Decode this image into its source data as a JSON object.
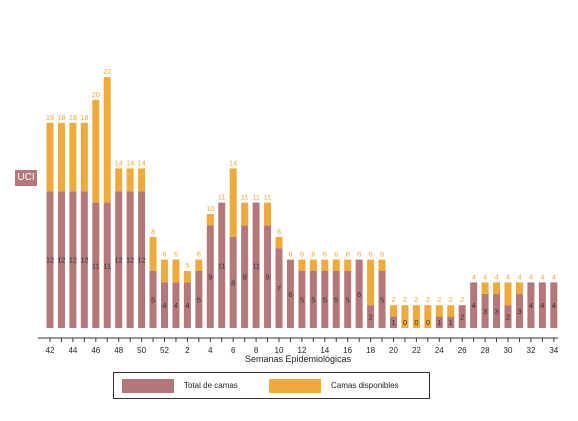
{
  "tag_label": "UCI",
  "colors": {
    "total": "#b5787a",
    "disponibles": "#f0a93b",
    "total_text": "#333333",
    "disponibles_text": "#f0a93b"
  },
  "legend": {
    "total_label": "Total de camas",
    "disponibles_label": "Camas disponibles"
  },
  "chart_data": {
    "type": "bar",
    "stacked": true,
    "xlabel": "Semanas Epidemiológicas",
    "ylabel": "",
    "ylim": [
      0,
      22
    ],
    "categories": [
      "42",
      "43",
      "44",
      "45",
      "46",
      "47",
      "48",
      "49",
      "50",
      "51",
      "52",
      "1",
      "2",
      "3",
      "4",
      "5",
      "6",
      "7",
      "8",
      "9",
      "10",
      "11",
      "12",
      "13",
      "14",
      "15",
      "16",
      "17",
      "18",
      "19",
      "20",
      "21",
      "22",
      "23",
      "24",
      "25",
      "26",
      "27",
      "28",
      "29",
      "30",
      "31",
      "32",
      "33",
      "34"
    ],
    "tick_labels": [
      "42",
      "44",
      "46",
      "48",
      "50",
      "52",
      "2",
      "4",
      "6",
      "8",
      "10",
      "12",
      "14",
      "16",
      "18",
      "20",
      "22",
      "24",
      "26",
      "28",
      "30",
      "32",
      "34"
    ],
    "series": [
      {
        "name": "Total de camas",
        "values": [
          12,
          12,
          12,
          12,
          11,
          11,
          12,
          12,
          12,
          5,
          4,
          4,
          4,
          5,
          9,
          11,
          8,
          9,
          11,
          9,
          7,
          6,
          5,
          5,
          5,
          5,
          5,
          6,
          2,
          5,
          1,
          0,
          0,
          0,
          1,
          1,
          2,
          4,
          3,
          3,
          2,
          3,
          4,
          4,
          4
        ]
      },
      {
        "name": "Camas disponibles",
        "values": [
          6,
          6,
          6,
          6,
          9,
          11,
          2,
          2,
          2,
          3,
          2,
          2,
          1,
          1,
          1,
          0,
          6,
          2,
          0,
          2,
          1,
          0,
          1,
          1,
          1,
          1,
          1,
          0,
          4,
          1,
          1,
          2,
          2,
          2,
          1,
          1,
          0,
          0,
          1,
          1,
          2,
          1,
          0,
          0,
          0
        ]
      }
    ],
    "total_labels": [
      "18",
      "18",
      "18",
      "18",
      "20",
      "22",
      "14",
      "14",
      "14",
      "8",
      "6",
      "6",
      "5",
      "6",
      "10",
      "11",
      "14",
      "11",
      "11",
      "11",
      "8",
      "6",
      "6",
      "6",
      "6",
      "6",
      "6",
      "6",
      "6",
      "6",
      "2",
      "2",
      "2",
      "2",
      "2",
      "2",
      "2",
      "4",
      "4",
      "4",
      "4",
      "4",
      "4",
      "4",
      "4"
    ],
    "base_labels": [
      "12",
      "12",
      "12",
      "12",
      "11",
      "11",
      "12",
      "12",
      "12",
      "5",
      "4",
      "4",
      "4",
      "5",
      "9",
      "11",
      "8",
      "9",
      "11",
      "9",
      "7",
      "6",
      "5",
      "5",
      "5",
      "5",
      "5",
      "6",
      "2",
      "5",
      "1",
      "0",
      "0",
      "0",
      "1",
      "1",
      "2",
      "4",
      "3",
      "3",
      "2",
      "3",
      "4",
      "4",
      "4"
    ]
  }
}
